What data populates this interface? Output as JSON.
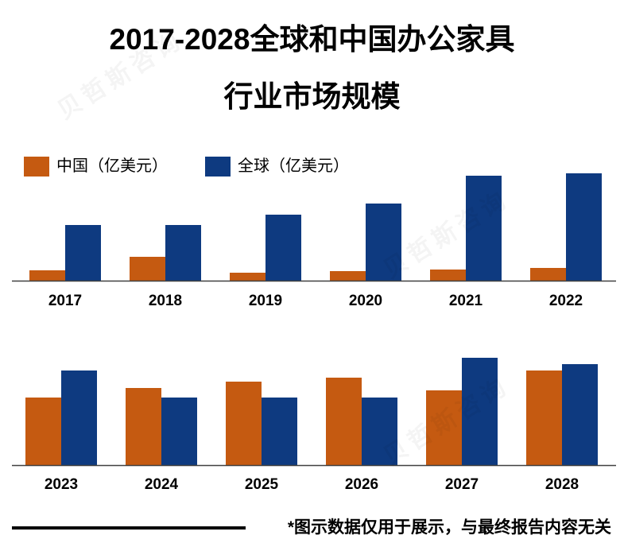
{
  "chart_data": {
    "type": "bar",
    "title_lines": [
      "2017-2028全球和中国办公家具",
      "行业市场规模"
    ],
    "xlabel": "",
    "ylabel": "",
    "ylim": [
      0,
      150
    ],
    "grid": false,
    "legend": "top-left",
    "categories": [
      "2017",
      "2018",
      "2019",
      "2020",
      "2021",
      "2022",
      "2023",
      "2024",
      "2025",
      "2026",
      "2027",
      "2028"
    ],
    "series": [
      {
        "name": "中国（亿美元）",
        "color": "#C55A11",
        "values": [
          13,
          30,
          10,
          12,
          14,
          16,
          85,
          97,
          105,
          110,
          94,
          119
        ]
      },
      {
        "name": "全球（亿美元）",
        "color": "#0E3A80",
        "values": [
          70,
          70,
          83,
          97,
          132,
          135,
          119,
          85,
          85,
          85,
          135,
          127
        ]
      }
    ]
  },
  "footer": {
    "note": "*图示数据仅用于展示，与最终报告内容无关"
  },
  "watermark": "贝哲斯咨询",
  "axis_color": "#404040"
}
